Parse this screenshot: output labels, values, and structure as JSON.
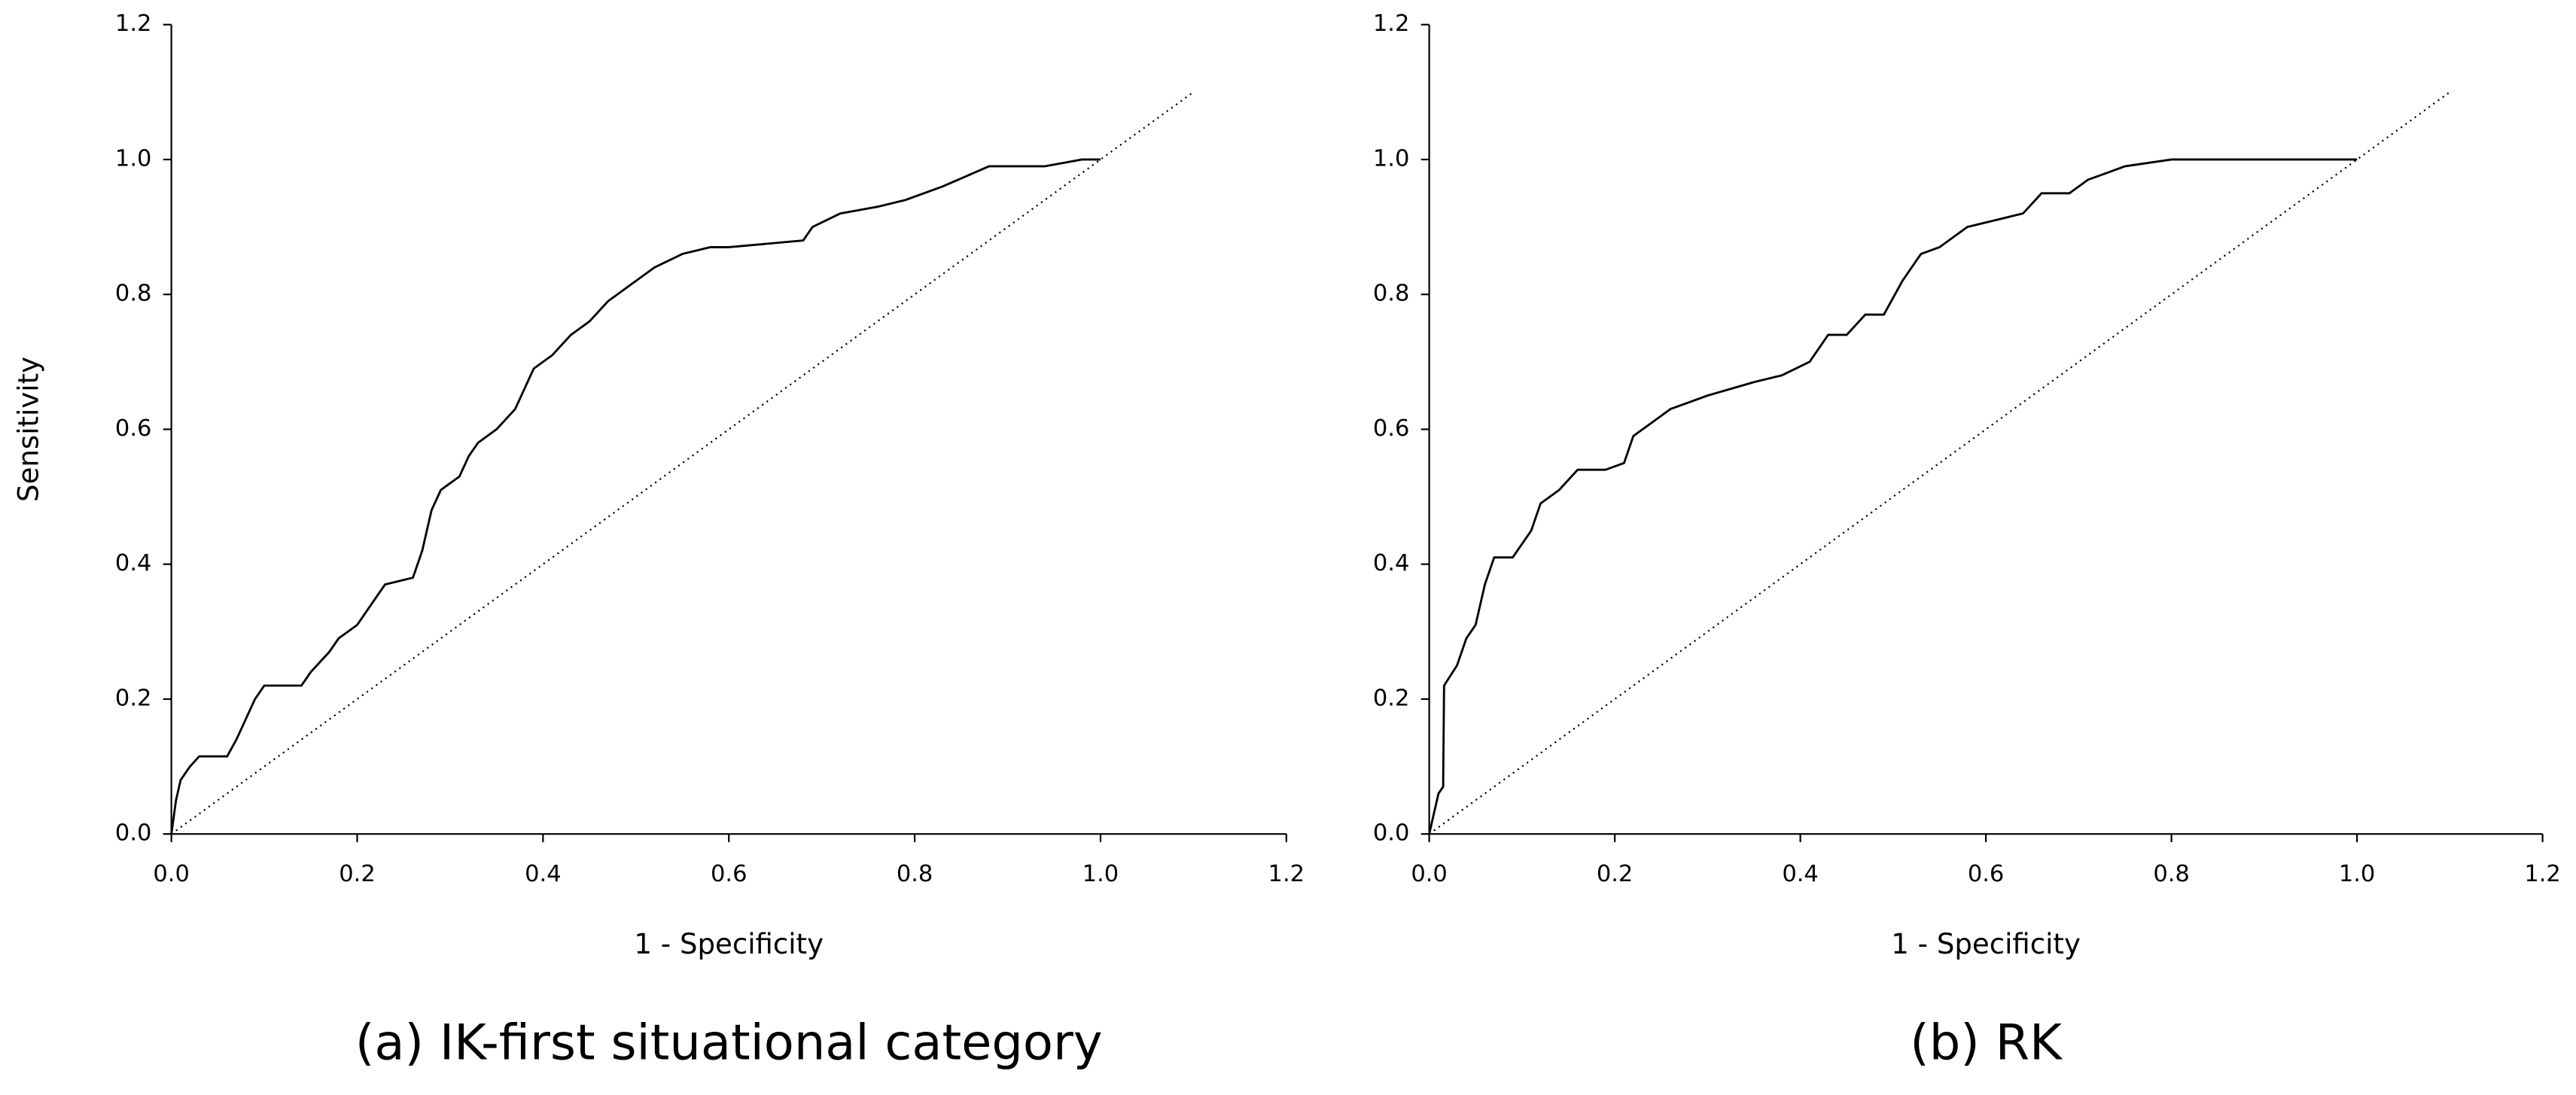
{
  "chart_data": [
    {
      "type": "line",
      "caption": "(a) IK-first situational category",
      "xlabel": "1 - Specificity",
      "ylabel": "Sensitivity",
      "xlim": [
        0,
        1.2
      ],
      "ylim": [
        0,
        1.2
      ],
      "xticks": [
        {
          "value": 0,
          "label": "0.0"
        },
        0.2,
        0.4,
        0.6,
        0.8,
        {
          "value": 1,
          "label": "1.0"
        },
        1.2
      ],
      "yticks": [
        {
          "value": 0,
          "label": "0.0"
        },
        0.2,
        0.4,
        0.6,
        0.8,
        {
          "value": 1,
          "label": "1.0"
        },
        1.2
      ],
      "series": [
        {
          "color": "#000000",
          "style": "solid",
          "x": [
            0,
            0.005,
            0.01,
            0.02,
            0.03,
            0.06,
            0.07,
            0.08,
            0.09,
            0.1,
            0.14,
            0.15,
            0.17,
            0.18,
            0.2,
            0.22,
            0.23,
            0.26,
            0.27,
            0.28,
            0.29,
            0.31,
            0.32,
            0.33,
            0.35,
            0.37,
            0.38,
            0.39,
            0.41,
            0.43,
            0.45,
            0.47,
            0.5,
            0.52,
            0.55,
            0.58,
            0.6,
            0.68,
            0.69,
            0.72,
            0.76,
            0.79,
            0.83,
            0.88,
            0.94,
            0.98,
            1.0
          ],
          "values": [
            0,
            0.05,
            0.08,
            0.1,
            0.115,
            0.115,
            0.14,
            0.17,
            0.2,
            0.22,
            0.22,
            0.24,
            0.27,
            0.29,
            0.31,
            0.35,
            0.37,
            0.38,
            0.42,
            0.48,
            0.51,
            0.53,
            0.56,
            0.58,
            0.6,
            0.63,
            0.66,
            0.69,
            0.71,
            0.74,
            0.76,
            0.79,
            0.82,
            0.84,
            0.86,
            0.87,
            0.87,
            0.88,
            0.9,
            0.92,
            0.93,
            0.94,
            0.96,
            0.99,
            0.99,
            1.0,
            1.0
          ]
        },
        {
          "color": "#000000",
          "style": "dotted",
          "x": [
            0,
            1.1
          ],
          "values": [
            0,
            1.1
          ]
        }
      ]
    },
    {
      "type": "line",
      "caption": "(b) RK",
      "xlabel": "1 - Specificity",
      "xlim": [
        0,
        1.2
      ],
      "ylim": [
        0,
        1.2
      ],
      "xticks": [
        {
          "value": 0,
          "label": "0.0"
        },
        0.2,
        0.4,
        0.6,
        0.8,
        {
          "value": 1,
          "label": "1.0"
        },
        1.2
      ],
      "yticks": [
        {
          "value": 0,
          "label": "0.0"
        },
        0.2,
        0.4,
        0.6,
        0.8,
        {
          "value": 1,
          "label": "1.0"
        },
        1.2
      ],
      "series": [
        {
          "color": "#000000",
          "style": "solid",
          "x": [
            0,
            0.01,
            0.015,
            0.016,
            0.03,
            0.04,
            0.05,
            0.06,
            0.07,
            0.09,
            0.11,
            0.12,
            0.14,
            0.16,
            0.19,
            0.21,
            0.22,
            0.24,
            0.26,
            0.3,
            0.35,
            0.38,
            0.41,
            0.43,
            0.45,
            0.47,
            0.49,
            0.51,
            0.53,
            0.55,
            0.58,
            0.61,
            0.64,
            0.66,
            0.69,
            0.71,
            0.75,
            0.8,
            1.0
          ],
          "values": [
            0,
            0.06,
            0.07,
            0.22,
            0.25,
            0.29,
            0.31,
            0.37,
            0.41,
            0.41,
            0.45,
            0.49,
            0.51,
            0.54,
            0.54,
            0.55,
            0.59,
            0.61,
            0.63,
            0.65,
            0.67,
            0.68,
            0.7,
            0.74,
            0.74,
            0.77,
            0.77,
            0.82,
            0.86,
            0.87,
            0.9,
            0.91,
            0.92,
            0.95,
            0.95,
            0.97,
            0.99,
            1.0,
            1.0
          ]
        },
        {
          "color": "#000000",
          "style": "dotted",
          "x": [
            0,
            1.1
          ],
          "values": [
            0,
            1.1
          ]
        }
      ]
    }
  ]
}
